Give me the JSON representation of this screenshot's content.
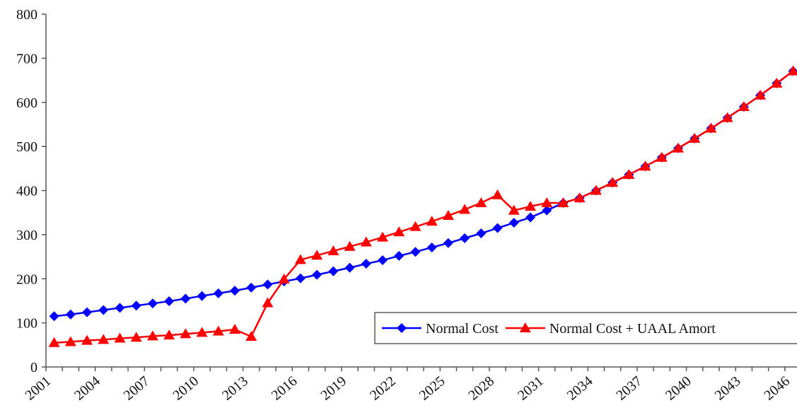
{
  "chart_data": {
    "type": "line",
    "categories": [
      "2001",
      null,
      null,
      "2004",
      null,
      null,
      "2007",
      null,
      null,
      "2010",
      null,
      null,
      "2013",
      null,
      null,
      "2016",
      null,
      null,
      "2019",
      null,
      null,
      "2022",
      null,
      null,
      "2025",
      null,
      null,
      "2028",
      null,
      null,
      "2031",
      null,
      null,
      "2034",
      null,
      null,
      "2037",
      null,
      null,
      "2040",
      null,
      null,
      "2043",
      null,
      null,
      "2046"
    ],
    "series": [
      {
        "name": "Normal Cost",
        "color": "#0000ff",
        "marker": "diamond",
        "values": [
          115,
          119,
          124,
          129,
          134,
          139,
          144,
          149,
          155,
          161,
          167,
          173,
          180,
          187,
          194,
          201,
          209,
          217,
          225,
          234,
          242,
          252,
          261,
          271,
          281,
          292,
          303,
          315,
          327,
          339,
          355,
          372,
          383,
          400,
          418,
          436,
          455,
          475,
          496,
          518,
          541,
          565,
          590,
          616,
          643,
          671
        ]
      },
      {
        "name": "Normal Cost + UAAL Amort",
        "color": "#ff0000",
        "marker": "triangle",
        "values": [
          55,
          57,
          60,
          62,
          65,
          67,
          70,
          72,
          75,
          78,
          81,
          85,
          69,
          145,
          199,
          243,
          253,
          263,
          273,
          283,
          294,
          306,
          318,
          330,
          343,
          357,
          372,
          390,
          355,
          364,
          372,
          372,
          383,
          400,
          418,
          436,
          455,
          475,
          496,
          518,
          541,
          565,
          590,
          616,
          643,
          671
        ]
      }
    ],
    "ylim": [
      0,
      800
    ],
    "yticks": [
      0,
      100,
      200,
      300,
      400,
      500,
      600,
      700,
      800
    ],
    "grid": false,
    "legend": "lower right"
  }
}
